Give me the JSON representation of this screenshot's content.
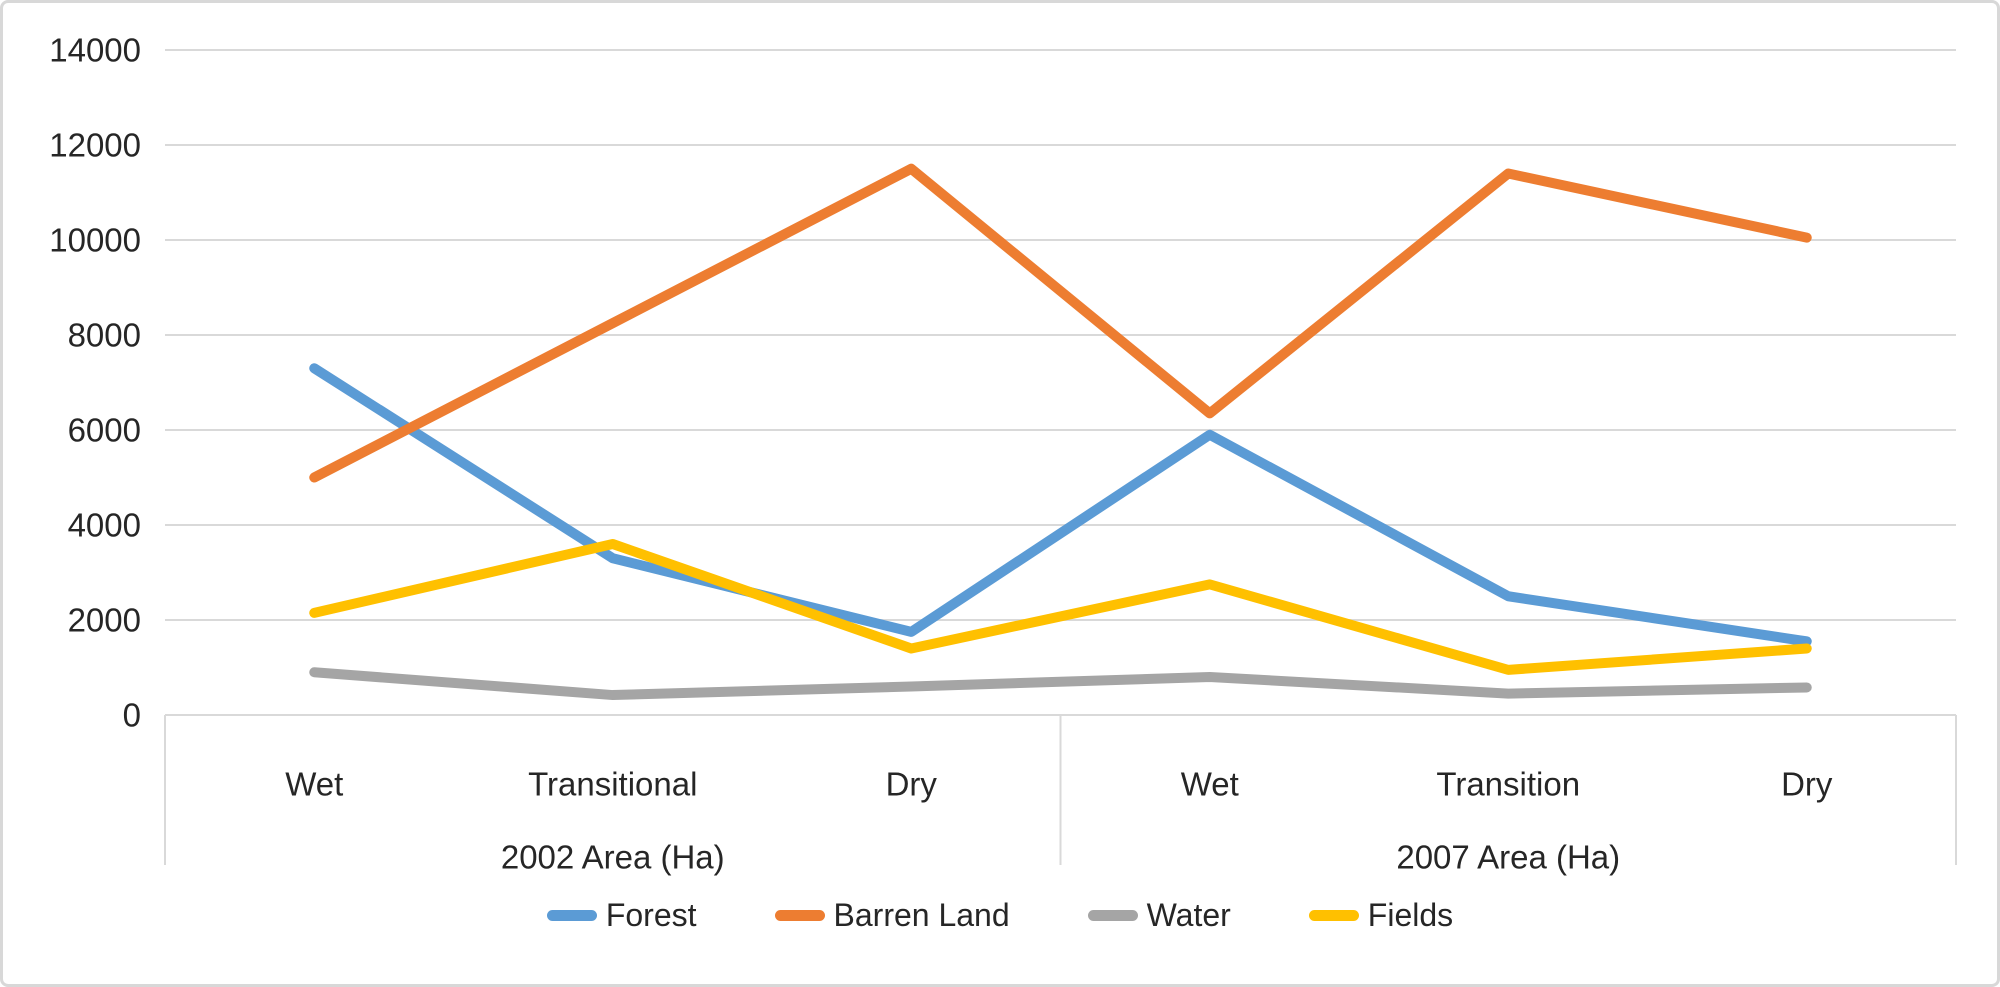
{
  "figure": {
    "background": "#FFFFFF",
    "border_color": "#D8D8D8"
  },
  "chart_data": {
    "type": "line",
    "title": "",
    "xlabel": "",
    "ylabel": "",
    "ylim": [
      0,
      14000
    ],
    "ytick_step": 2000,
    "yticks": [
      "0",
      "2000",
      "4000",
      "6000",
      "8000",
      "10000",
      "12000",
      "14000"
    ],
    "grid": true,
    "gridline_color": "#D9D9D9",
    "axis_line_color": "#D9D9D9",
    "axis_text_color": "#262626",
    "legend_position": "bottom",
    "groups": [
      {
        "label": "2002 Area (Ha)",
        "categories": [
          "Wet",
          "Transitional",
          "Dry"
        ]
      },
      {
        "label": "2007 Area (Ha)",
        "categories": [
          "Wet",
          "Transition",
          "Dry"
        ]
      }
    ],
    "categories": [
      "Wet",
      "Transitional",
      "Dry",
      "Wet",
      "Transition",
      "Dry"
    ],
    "series": [
      {
        "name": "Forest",
        "color": "#5B9BD5",
        "values": [
          7300,
          3300,
          1750,
          5900,
          2500,
          1550
        ]
      },
      {
        "name": "Barren Land",
        "color": "#ED7D31",
        "values": [
          5000,
          8250,
          11500,
          6350,
          11400,
          10050
        ]
      },
      {
        "name": "Water",
        "color": "#A5A5A5",
        "values": [
          900,
          420,
          600,
          800,
          450,
          580
        ]
      },
      {
        "name": "Fields",
        "color": "#FFC000",
        "values": [
          2150,
          3600,
          1400,
          2750,
          950,
          1400
        ]
      }
    ]
  }
}
